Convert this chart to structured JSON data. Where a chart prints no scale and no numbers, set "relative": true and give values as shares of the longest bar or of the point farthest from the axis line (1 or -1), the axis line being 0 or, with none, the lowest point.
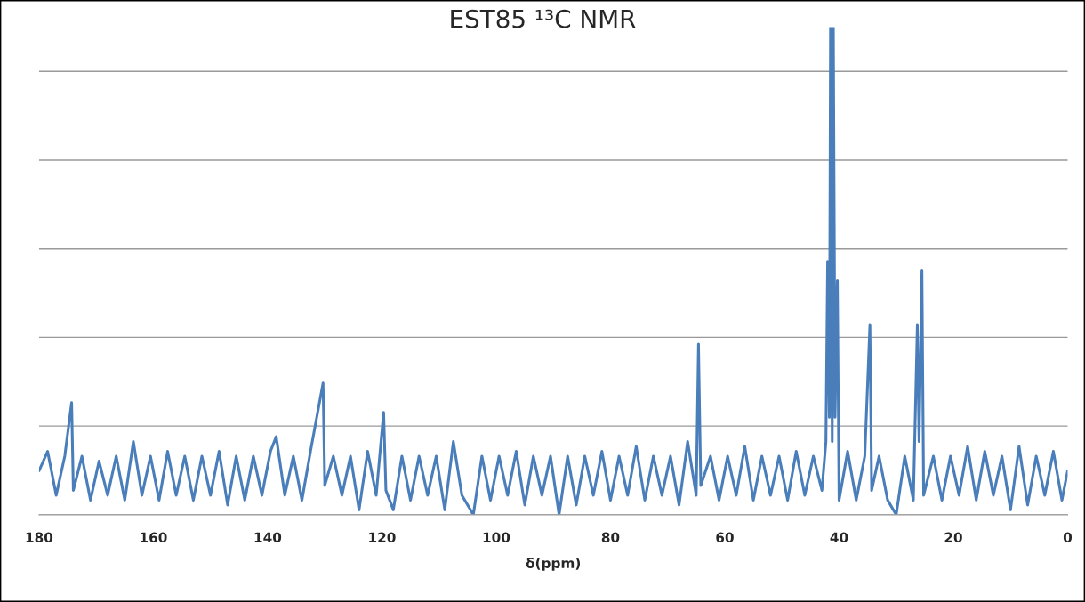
{
  "chart_data": {
    "type": "line",
    "title": "EST85 ¹³C NMR",
    "xlabel": "δ(ppm)",
    "relative": true,
    "grid": "y",
    "xlim": [
      180,
      0
    ],
    "xticks": [
      180,
      160,
      140,
      120,
      100,
      80,
      60,
      40,
      20,
      0
    ],
    "series": [
      {
        "color": "#4a7ebb",
        "x": [
          180,
          178.5,
          177,
          175.5,
          174.3,
          174,
          172.5,
          171,
          169.5,
          168,
          166.5,
          165,
          163.5,
          162,
          160.5,
          159,
          157.5,
          156,
          154.5,
          153,
          151.5,
          150,
          148.5,
          147,
          145.5,
          144,
          142.5,
          141,
          139.5,
          138.5,
          137,
          135.5,
          134,
          132.5,
          130.3,
          130,
          128.5,
          127,
          125.5,
          124,
          122.5,
          121,
          119.7,
          119.3,
          118,
          116.5,
          115,
          113.5,
          112,
          110.5,
          109,
          107.5,
          106,
          104,
          102.5,
          101,
          99.5,
          98,
          96.5,
          95,
          93.5,
          92,
          90.5,
          89,
          87.5,
          86,
          84.5,
          83,
          81.5,
          80,
          78.5,
          77,
          75.5,
          74,
          72.5,
          71,
          69.5,
          68,
          66.5,
          65,
          64.6,
          64.2,
          62.5,
          61,
          59.5,
          58,
          56.5,
          55,
          53.5,
          52,
          50.5,
          49,
          47.5,
          46,
          44.5,
          43,
          42.3,
          42,
          41.7,
          41.5,
          41.2,
          41,
          40.7,
          40.3,
          40,
          38.5,
          37,
          35.5,
          34.6,
          34.3,
          33,
          31.5,
          30,
          28.5,
          27,
          26.3,
          26,
          25.5,
          25.2,
          23.5,
          22,
          20.5,
          19,
          17.5,
          16,
          14.5,
          13,
          11.5,
          10,
          8.5,
          7,
          5.5,
          4,
          2.5,
          1,
          0
        ],
        "values": [
          0.09,
          0.13,
          0.04,
          0.12,
          0.23,
          0.05,
          0.12,
          0.03,
          0.11,
          0.04,
          0.12,
          0.03,
          0.15,
          0.04,
          0.12,
          0.03,
          0.13,
          0.04,
          0.12,
          0.03,
          0.12,
          0.04,
          0.13,
          0.02,
          0.12,
          0.03,
          0.12,
          0.04,
          0.13,
          0.16,
          0.04,
          0.12,
          0.03,
          0.13,
          0.27,
          0.06,
          0.12,
          0.04,
          0.12,
          0.01,
          0.13,
          0.04,
          0.21,
          0.05,
          0.01,
          0.12,
          0.03,
          0.12,
          0.04,
          0.12,
          0.01,
          0.15,
          0.04,
          0.0,
          0.12,
          0.03,
          0.12,
          0.04,
          0.13,
          0.02,
          0.12,
          0.04,
          0.12,
          0.0,
          0.12,
          0.02,
          0.12,
          0.04,
          0.13,
          0.03,
          0.12,
          0.04,
          0.14,
          0.03,
          0.12,
          0.04,
          0.12,
          0.02,
          0.15,
          0.04,
          0.35,
          0.06,
          0.12,
          0.03,
          0.12,
          0.04,
          0.14,
          0.03,
          0.12,
          0.04,
          0.12,
          0.03,
          0.13,
          0.04,
          0.12,
          0.05,
          0.15,
          0.52,
          0.2,
          1,
          0.15,
          1,
          0.2,
          0.48,
          0.03,
          0.13,
          0.03,
          0.12,
          0.39,
          0.05,
          0.12,
          0.03,
          0.0,
          0.12,
          0.03,
          0.39,
          0.15,
          0.5,
          0.04,
          0.12,
          0.03,
          0.12,
          0.04,
          0.14,
          0.03,
          0.13,
          0.04,
          0.12,
          0.01,
          0.14,
          0.02,
          0.12,
          0.04,
          0.13,
          0.03,
          0.09
        ]
      }
    ]
  }
}
